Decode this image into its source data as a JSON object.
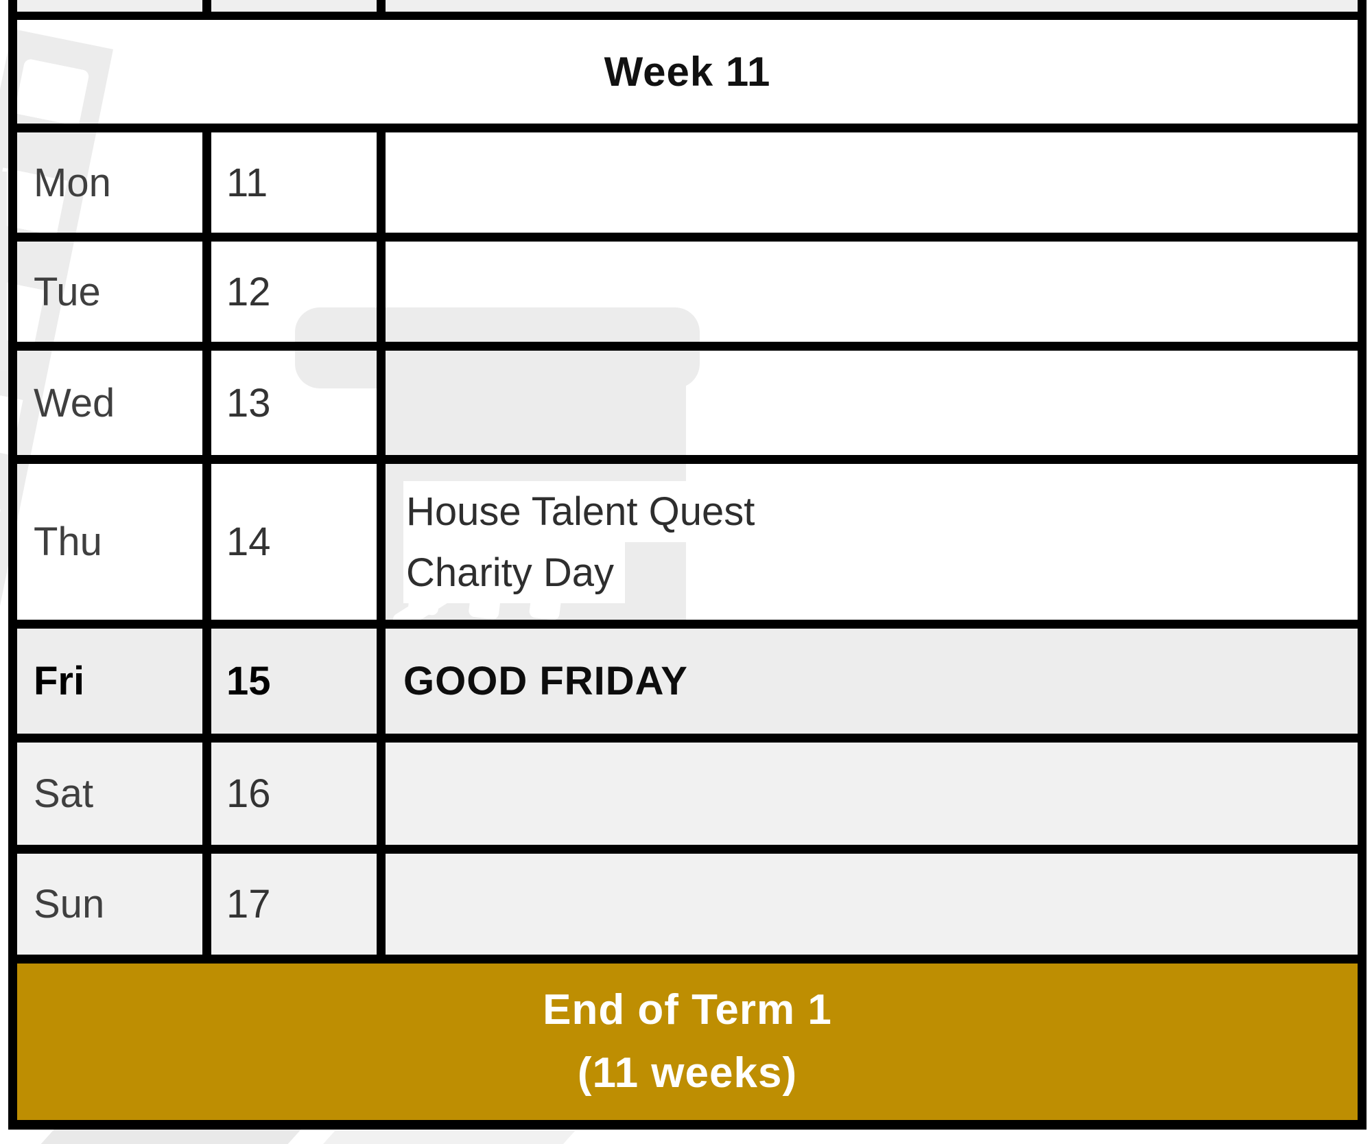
{
  "colors": {
    "table_border": "#000000",
    "white_row_bg": "#ffffff",
    "shaded_row_bg": "#efefef",
    "banner_bg": "#be8e02",
    "banner_text": "#ffffff",
    "watermark_gray": "#ececec"
  },
  "calendar": {
    "week_label": "Week 11",
    "days": [
      {
        "name": "Mon",
        "date": "11",
        "events": []
      },
      {
        "name": "Tue",
        "date": "12",
        "events": []
      },
      {
        "name": "Wed",
        "date": "13",
        "events": []
      },
      {
        "name": "Thu",
        "date": "14",
        "events": [
          "House Talent Quest",
          "Charity Day"
        ]
      },
      {
        "name": "Fri",
        "date": "15",
        "events": [
          "GOOD FRIDAY"
        ]
      },
      {
        "name": "Sat",
        "date": "16",
        "events": []
      },
      {
        "name": "Sun",
        "date": "17",
        "events": []
      }
    ],
    "banner": {
      "line1": "End of Term 1",
      "line2": "(11 weeks)"
    }
  }
}
